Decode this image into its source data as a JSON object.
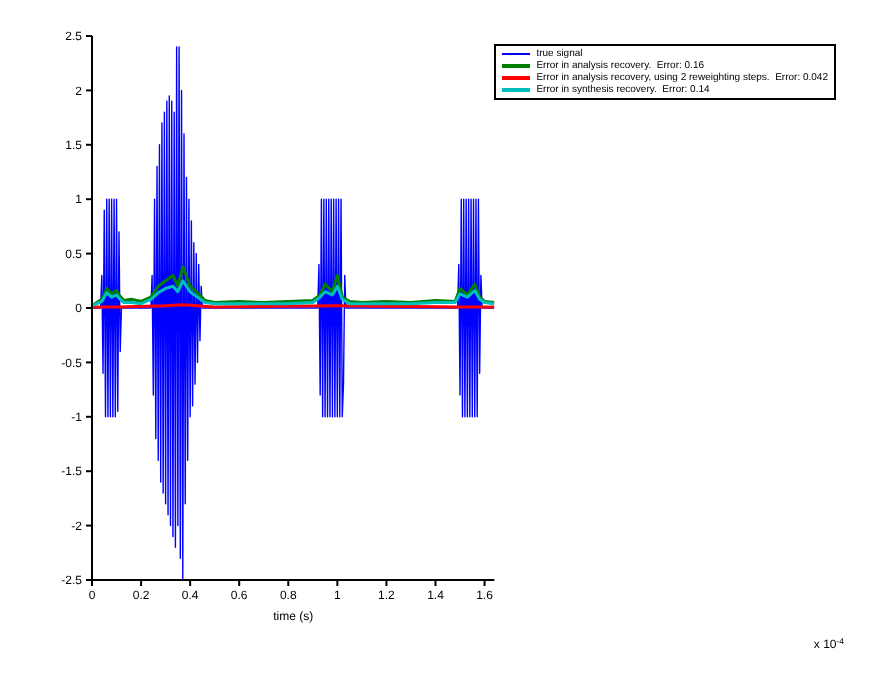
{
  "chart_data": {
    "type": "line",
    "xlabel": "time (s)",
    "annotations": [
      "x 10$^{-4}$"
    ],
    "xlim": [
      0,
      1.64
    ],
    "xticks": [
      0,
      0.2,
      0.4,
      0.6,
      0.8,
      1,
      1.2,
      1.4,
      1.6
    ],
    "ylim": [
      -2.5,
      2.5
    ],
    "yticks": [
      -2.5,
      -2,
      -1.5,
      -1,
      -0.5,
      0,
      0.5,
      1,
      1.5,
      2,
      2.5
    ],
    "grid": false,
    "legend": "top right",
    "marker": "none",
    "line_style": "solid",
    "series": [
      {
        "name": "true signal",
        "color": "#0000ff",
        "x": [
          0,
          0.035,
          0.04,
          0.045,
          0.05,
          0.055,
          0.06,
          0.065,
          0.07,
          0.075,
          0.08,
          0.085,
          0.09,
          0.095,
          0.1,
          0.105,
          0.11,
          0.115,
          0.12,
          0.24,
          0.245,
          0.25,
          0.255,
          0.26,
          0.265,
          0.27,
          0.275,
          0.28,
          0.285,
          0.29,
          0.295,
          0.3,
          0.305,
          0.31,
          0.315,
          0.32,
          0.325,
          0.33,
          0.335,
          0.34,
          0.345,
          0.35,
          0.355,
          0.36,
          0.365,
          0.37,
          0.375,
          0.38,
          0.385,
          0.39,
          0.395,
          0.4,
          0.405,
          0.41,
          0.415,
          0.42,
          0.425,
          0.43,
          0.435,
          0.44,
          0.445,
          0.45,
          0.92,
          0.925,
          0.93,
          0.935,
          0.94,
          0.945,
          0.95,
          0.955,
          0.96,
          0.965,
          0.97,
          0.975,
          0.98,
          0.985,
          0.99,
          0.995,
          1,
          1.005,
          1.01,
          1.015,
          1.02,
          1.025,
          1.03,
          1.035,
          1.49,
          1.495,
          1.5,
          1.505,
          1.51,
          1.515,
          1.52,
          1.525,
          1.53,
          1.535,
          1.54,
          1.545,
          1.55,
          1.555,
          1.56,
          1.565,
          1.57,
          1.575,
          1.58,
          1.585,
          1.59,
          1.64
        ],
        "values": [
          0,
          0,
          0.3,
          -0.6,
          0.9,
          -1,
          1,
          -1,
          1,
          -1,
          1,
          -1,
          1,
          -1,
          1,
          -0.95,
          0.7,
          -0.4,
          0,
          0,
          0.3,
          -0.8,
          1,
          -1.2,
          1.3,
          -1.4,
          1.5,
          -1.6,
          1.7,
          -1.7,
          1.8,
          -1.8,
          1.9,
          -1.9,
          1.95,
          -2,
          1.9,
          -2.1,
          1.8,
          -2.2,
          2.4,
          -2,
          2.4,
          -2.3,
          2,
          -2.5,
          1.6,
          -1.8,
          1.2,
          -1.4,
          1,
          -1,
          0.8,
          -0.9,
          0.6,
          -0.7,
          0.5,
          -0.5,
          0.4,
          -0.3,
          0.2,
          0,
          0,
          0.4,
          -0.8,
          1,
          -1,
          1,
          -1,
          1,
          -1,
          1,
          -1,
          1,
          -1,
          1,
          -1,
          1,
          -1,
          1,
          -1,
          1,
          -1,
          -0.7,
          0.3,
          0,
          0,
          0.4,
          -0.8,
          1,
          -1,
          1,
          -1,
          1,
          -1,
          1,
          -1,
          1,
          -1,
          1,
          -1,
          1,
          -1,
          1,
          -0.6,
          0.3,
          0,
          0
        ]
      },
      {
        "name": "Error in analysis recovery.  Error: 0.16",
        "color": "#008000",
        "x": [
          0,
          0.02,
          0.04,
          0.05,
          0.06,
          0.08,
          0.1,
          0.11,
          0.13,
          0.16,
          0.2,
          0.24,
          0.27,
          0.3,
          0.33,
          0.35,
          0.37,
          0.4,
          0.43,
          0.46,
          0.5,
          0.6,
          0.7,
          0.8,
          0.9,
          0.93,
          0.95,
          0.98,
          1,
          1.02,
          1.05,
          1.1,
          1.2,
          1.3,
          1.4,
          1.48,
          1.5,
          1.53,
          1.56,
          1.58,
          1.6,
          1.64
        ],
        "values": [
          0.02,
          0.05,
          0.08,
          0.12,
          0.18,
          0.13,
          0.16,
          0.12,
          0.07,
          0.08,
          0.06,
          0.1,
          0.2,
          0.25,
          0.3,
          0.2,
          0.38,
          0.2,
          0.14,
          0.07,
          0.05,
          0.06,
          0.05,
          0.06,
          0.07,
          0.12,
          0.22,
          0.15,
          0.3,
          0.1,
          0.06,
          0.05,
          0.06,
          0.05,
          0.07,
          0.06,
          0.18,
          0.12,
          0.22,
          0.1,
          0.06,
          0.05
        ]
      },
      {
        "name": "Error in analysis recovery, using 2 reweighting steps.  Error: 0.042",
        "color": "#ff0000",
        "x": [
          0,
          0.05,
          0.1,
          0.3,
          0.37,
          0.5,
          1,
          1.5,
          1.64
        ],
        "values": [
          0.01,
          0.01,
          0.01,
          0.02,
          0.03,
          0.01,
          0.02,
          0.01,
          0.01
        ]
      },
      {
        "name": "Error in synthesis recovery.  Error: 0.14",
        "color": "#00bfbf",
        "x": [
          0,
          0.02,
          0.04,
          0.05,
          0.06,
          0.08,
          0.1,
          0.11,
          0.13,
          0.16,
          0.2,
          0.24,
          0.27,
          0.3,
          0.33,
          0.35,
          0.37,
          0.4,
          0.43,
          0.46,
          0.5,
          0.6,
          0.7,
          0.8,
          0.9,
          0.93,
          0.95,
          0.98,
          1,
          1.02,
          1.05,
          1.1,
          1.2,
          1.3,
          1.4,
          1.48,
          1.5,
          1.53,
          1.56,
          1.58,
          1.6,
          1.64
        ],
        "values": [
          0.02,
          0.04,
          0.06,
          0.1,
          0.14,
          0.1,
          0.12,
          0.09,
          0.05,
          0.05,
          0.04,
          0.08,
          0.14,
          0.18,
          0.2,
          0.15,
          0.25,
          0.15,
          0.1,
          0.05,
          0.04,
          0.04,
          0.04,
          0.04,
          0.05,
          0.1,
          0.15,
          0.12,
          0.2,
          0.08,
          0.04,
          0.04,
          0.04,
          0.04,
          0.05,
          0.05,
          0.13,
          0.1,
          0.16,
          0.08,
          0.05,
          0.04
        ]
      }
    ]
  }
}
